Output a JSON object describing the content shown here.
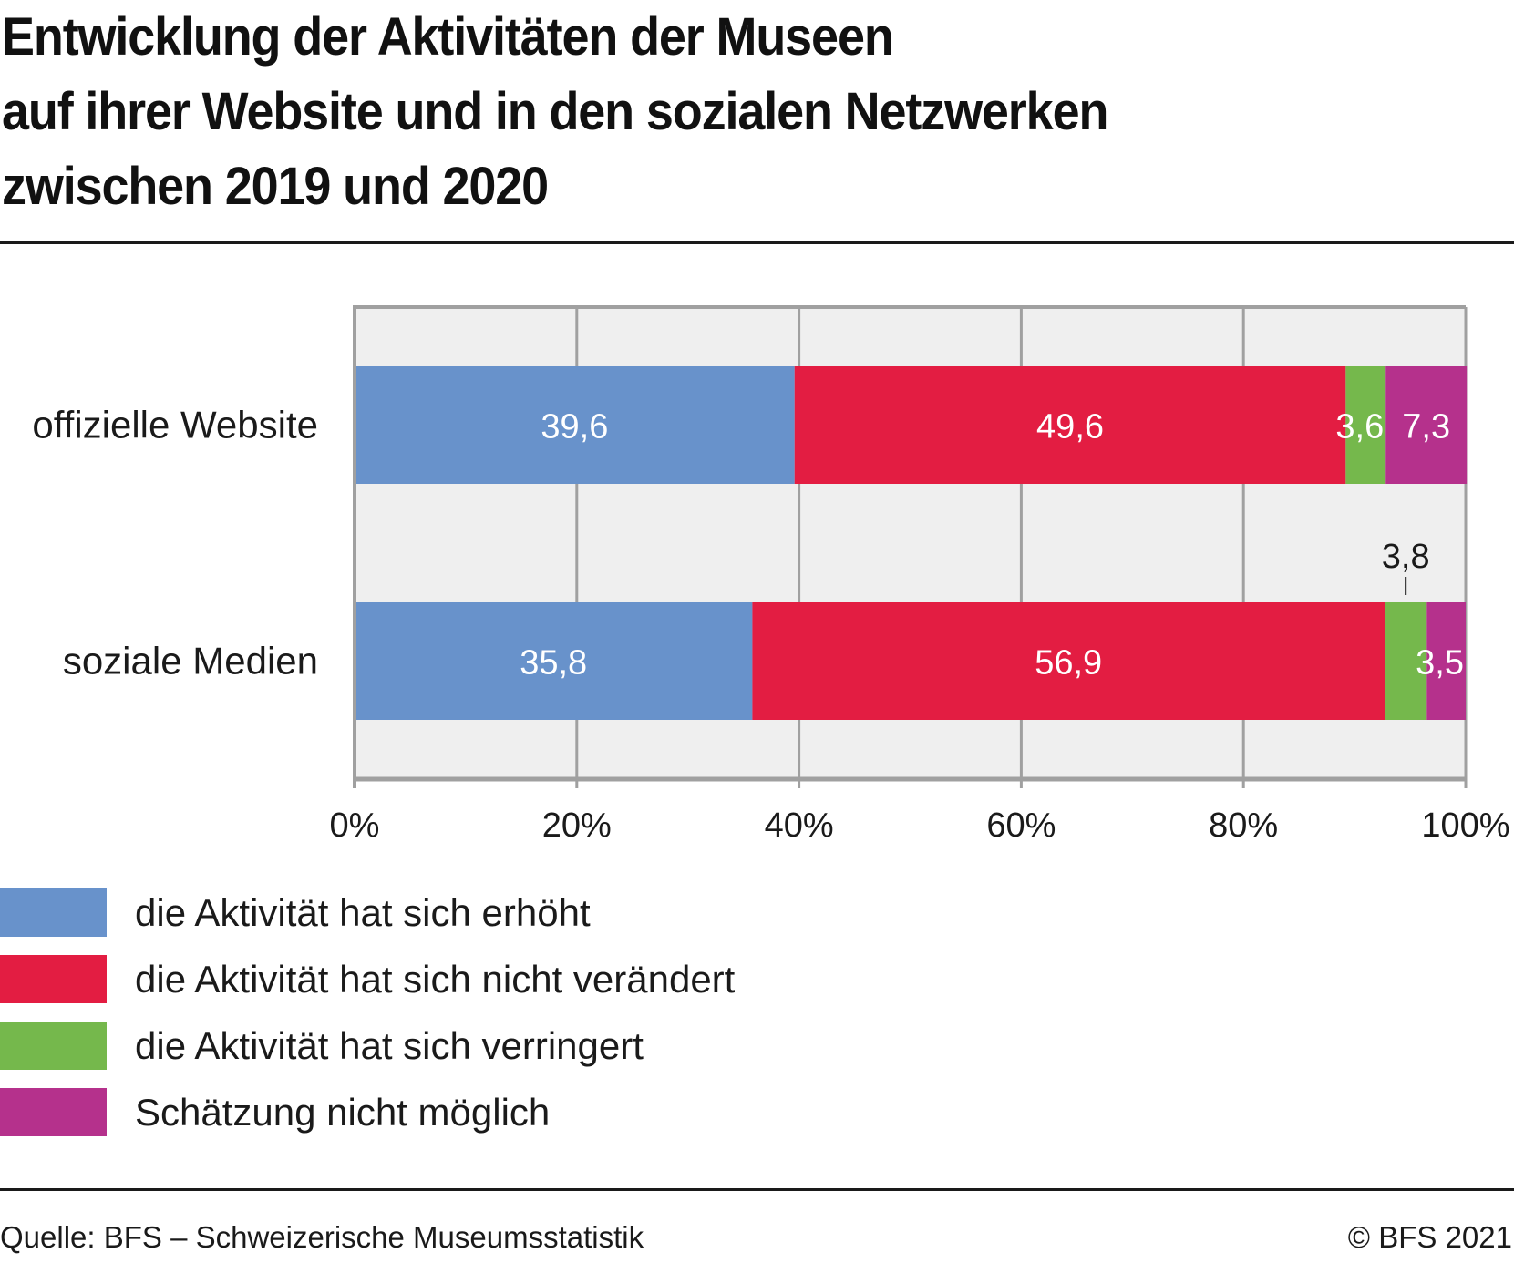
{
  "header": {
    "title_lines": [
      "Entwicklung der Aktivitäten der Museen",
      "auf ihrer Website und in den sozialen Netzwerken",
      "zwischen 2019 und 2020"
    ]
  },
  "chart_data": {
    "type": "bar",
    "orientation": "horizontal",
    "stacked": true,
    "title": "Entwicklung der Aktivitäten der Museen auf ihrer Website und in den sozialen Netzwerken zwischen 2019 und 2020",
    "xlabel": "",
    "ylabel": "",
    "xlim": [
      0,
      100
    ],
    "x_ticks": [
      0,
      20,
      40,
      60,
      80,
      100
    ],
    "x_tick_labels": [
      "0%",
      "20%",
      "40%",
      "60%",
      "80%",
      "100%"
    ],
    "grid": true,
    "categories": [
      "offizielle Website",
      "soziale Medien"
    ],
    "series": [
      {
        "name": "die Aktivität hat sich erhöht",
        "color": "#6892cb",
        "values": [
          39.6,
          35.8
        ],
        "labels": [
          "39,6",
          "35,8"
        ]
      },
      {
        "name": "die Aktivität hat sich nicht verändert",
        "color": "#e31d42",
        "values": [
          49.6,
          56.9
        ],
        "labels": [
          "49,6",
          "56,9"
        ]
      },
      {
        "name": "die Aktivität hat sich verringert",
        "color": "#75b84c",
        "values": [
          3.6,
          3.8
        ],
        "labels": [
          "3,6",
          "3,8"
        ]
      },
      {
        "name": "Schätzung nicht möglich",
        "color": "#b5318c",
        "values": [
          7.3,
          3.5
        ],
        "labels": [
          "7,3",
          "3,5"
        ]
      }
    ],
    "legend_position": "bottom-left",
    "colors": {
      "plot_background": "#efefef",
      "grid": "#a0a0a0",
      "axis": "#a0a0a0"
    }
  },
  "legend": {
    "items": [
      {
        "label": "die Aktivität hat sich erhöht",
        "color": "#6892cb"
      },
      {
        "label": "die Aktivität hat sich nicht verändert",
        "color": "#e31d42"
      },
      {
        "label": "die Aktivität hat sich verringert",
        "color": "#75b84c"
      },
      {
        "label": "Schätzung nicht möglich",
        "color": "#b5318c"
      }
    ]
  },
  "footer": {
    "source": "Quelle: BFS – Schweizerische Museumsstatistik",
    "copyright": "© BFS 2021"
  }
}
